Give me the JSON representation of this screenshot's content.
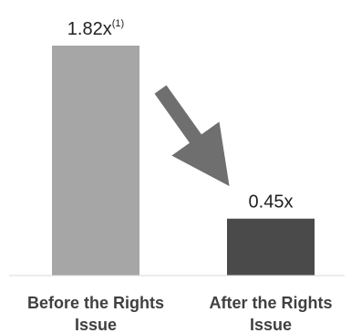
{
  "chart_data": {
    "type": "bar",
    "categories": [
      "Before the Rights Issue",
      "After the Rights Issue"
    ],
    "category_lines": [
      [
        "Before the Rights",
        "Issue"
      ],
      [
        "After the Rights",
        "Issue"
      ]
    ],
    "values": [
      1.82,
      0.45
    ],
    "data_labels": [
      "1.82x",
      "0.45x"
    ],
    "footnote_marks": [
      "(1)",
      ""
    ],
    "colors": [
      "#a6a6a6",
      "#4a4a4a"
    ],
    "arrow_color": "#6f6f6f",
    "title": "",
    "xlabel": "",
    "ylabel": "",
    "ylim": [
      0,
      1.82
    ],
    "grid": false,
    "legend": "none"
  }
}
